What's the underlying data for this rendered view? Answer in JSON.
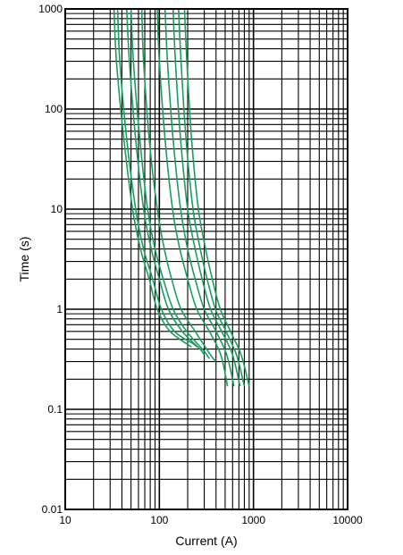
{
  "chart_data": {
    "type": "line",
    "title": "",
    "xlabel": "Current (A)",
    "ylabel": "Time (s)",
    "x_scale": "log",
    "y_scale": "log",
    "xlim": [
      10,
      10000
    ],
    "ylim": [
      0.01,
      1000
    ],
    "x_ticks": [
      "10",
      "100",
      "1000",
      "10000"
    ],
    "y_ticks": [
      "1000",
      "100",
      "10",
      "1",
      "0.1",
      "0.01"
    ],
    "grid": true,
    "legend": "none",
    "line_color": "#1a9e5e",
    "series": [
      {
        "x": [
          33,
          35,
          42,
          52,
          63,
          78,
          95,
          130,
          220
        ],
        "y": [
          1000,
          300,
          50,
          10,
          4,
          2,
          1,
          0.6,
          0.42
        ]
      },
      {
        "x": [
          36,
          38,
          45,
          56,
          68,
          85,
          105,
          145,
          230,
          250
        ],
        "y": [
          1000,
          300,
          50,
          10,
          4,
          2,
          1,
          0.6,
          0.45,
          0.42
        ]
      },
      {
        "x": [
          45,
          48,
          56,
          68,
          82,
          100,
          125,
          175,
          270,
          300
        ],
        "y": [
          1000,
          300,
          50,
          10,
          4,
          2,
          1,
          0.6,
          0.4,
          0.35
        ]
      },
      {
        "x": [
          50,
          53,
          62,
          75,
          90,
          110,
          140,
          195,
          300,
          340
        ],
        "y": [
          1000,
          300,
          50,
          10,
          4,
          2,
          1,
          0.6,
          0.38,
          0.32
        ]
      },
      {
        "x": [
          65,
          68,
          78,
          95,
          113,
          135,
          170,
          240,
          350,
          400
        ],
        "y": [
          1000,
          300,
          50,
          10,
          4,
          2,
          1,
          0.6,
          0.35,
          0.3
        ]
      },
      {
        "x": [
          95,
          100,
          115,
          138,
          165,
          200,
          250,
          340,
          450,
          530
        ],
        "y": [
          1000,
          300,
          50,
          10,
          4,
          2,
          1,
          0.6,
          0.35,
          0.17
        ]
      },
      {
        "x": [
          115,
          122,
          140,
          168,
          200,
          240,
          300,
          400,
          520,
          620
        ],
        "y": [
          1000,
          300,
          50,
          10,
          4,
          2,
          1,
          0.6,
          0.35,
          0.17
        ]
      },
      {
        "x": [
          140,
          148,
          168,
          200,
          240,
          285,
          350,
          460,
          600,
          720
        ],
        "y": [
          1000,
          300,
          50,
          10,
          4,
          2,
          1,
          0.6,
          0.35,
          0.17
        ]
      },
      {
        "x": [
          160,
          170,
          192,
          228,
          272,
          322,
          395,
          510,
          660,
          800
        ],
        "y": [
          1000,
          300,
          50,
          10,
          4,
          2,
          1,
          0.6,
          0.35,
          0.17
        ]
      },
      {
        "x": [
          185,
          196,
          220,
          260,
          310,
          365,
          445,
          570,
          740,
          900
        ],
        "y": [
          1000,
          300,
          50,
          10,
          4,
          2,
          1,
          0.6,
          0.35,
          0.17
        ]
      }
    ]
  }
}
